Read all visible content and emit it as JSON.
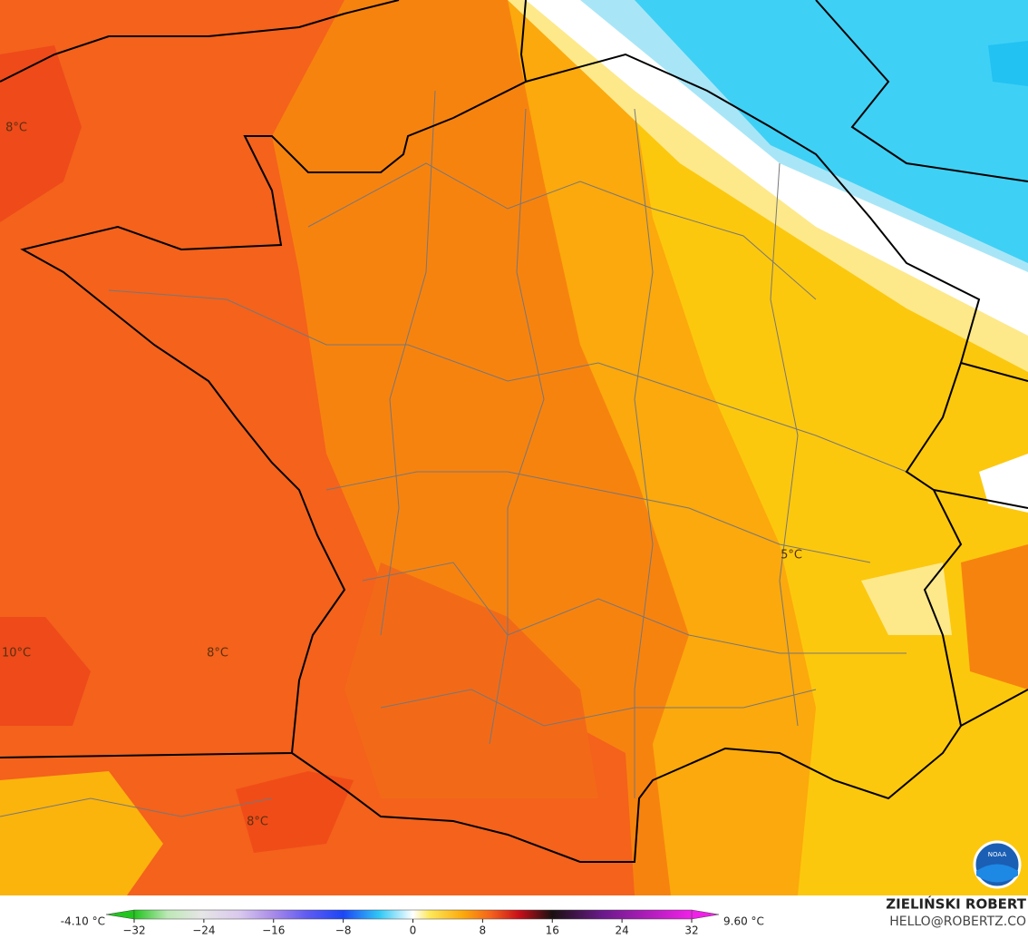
{
  "map": {
    "labels": [
      "8°C",
      "10°C",
      "8°C",
      "8°C",
      "5°C"
    ],
    "logo": "NOAA"
  },
  "colorbar": {
    "min_label": "-4.10 °C",
    "max_label": "9.60 °C",
    "lim": [
      -32,
      32
    ],
    "ticks": [
      {
        "value": -32,
        "label": "−32"
      },
      {
        "value": -24,
        "label": "−24"
      },
      {
        "value": -16,
        "label": "−16"
      },
      {
        "value": -8,
        "label": "−8"
      },
      0,
      8,
      16,
      24,
      32
    ]
  },
  "credits": {
    "author": "ZIELIŃSKI ROBERT",
    "contact": "HELLO@ROBERTZ.CO"
  }
}
